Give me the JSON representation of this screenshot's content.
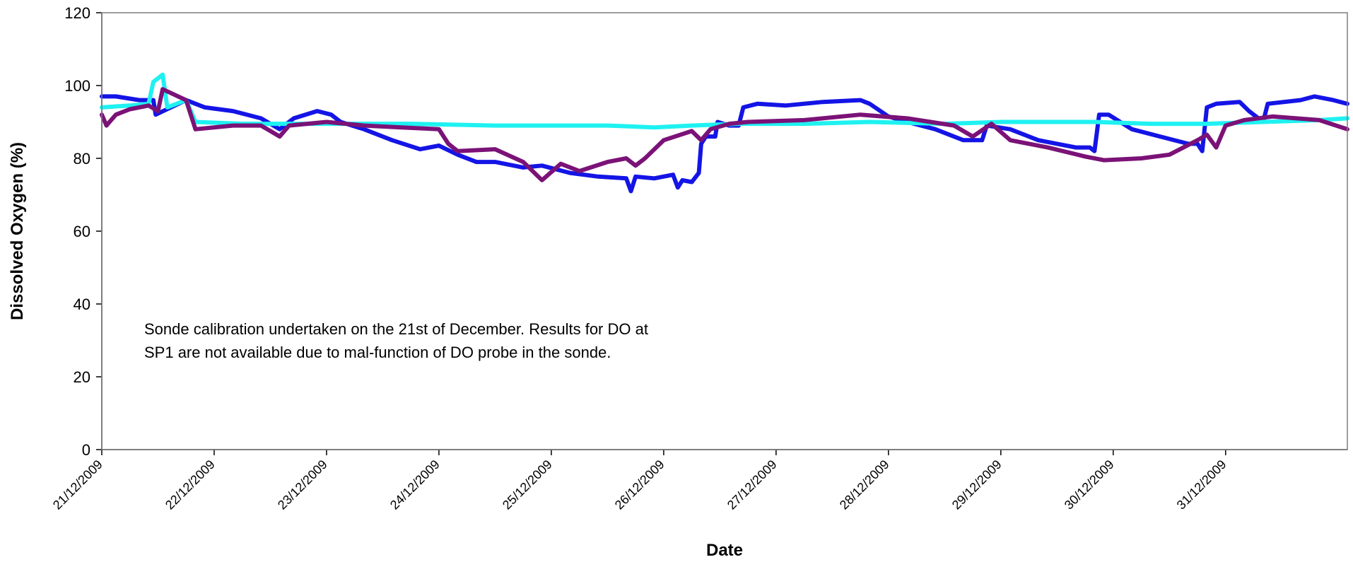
{
  "chart_data": {
    "type": "line",
    "title": "",
    "xlabel": "Date",
    "ylabel": "Dissolved Oxygen (%)",
    "ylim": [
      0,
      120
    ],
    "yticks": [
      0,
      20,
      40,
      60,
      80,
      100,
      120
    ],
    "xlim": [
      "21/12/2009",
      "01/01/2010 02:00"
    ],
    "xticks": [
      "21/12/2009",
      "22/12/2009",
      "23/12/2009",
      "24/12/2009",
      "25/12/2009",
      "26/12/2009",
      "27/12/2009",
      "28/12/2009",
      "29/12/2009",
      "30/12/2009",
      "31/12/2009"
    ],
    "grid": false,
    "legend": "none",
    "annotation": {
      "line1": "Sonde calibration undertaken on the 21st of December. Results for DO at",
      "line2": "SP1 are not available due to mal-function of DO probe in the sonde."
    },
    "series": [
      {
        "color": "#1414e6",
        "points": [
          [
            "21/12/2009 00:00",
            97
          ],
          [
            "21/12/2009 03:00",
            97
          ],
          [
            "21/12/2009 08:00",
            96
          ],
          [
            "21/12/2009 11:00",
            96
          ],
          [
            "21/12/2009 11:30",
            92
          ],
          [
            "21/12/2009 18:00",
            96
          ],
          [
            "21/12/2009 22:00",
            94
          ],
          [
            "22/12/2009 04:00",
            93
          ],
          [
            "22/12/2009 10:00",
            91
          ],
          [
            "22/12/2009 14:00",
            88
          ],
          [
            "22/12/2009 17:00",
            91
          ],
          [
            "22/12/2009 22:00",
            93
          ],
          [
            "23/12/2009 01:00",
            92
          ],
          [
            "23/12/2009 03:00",
            90
          ],
          [
            "23/12/2009 08:00",
            88
          ],
          [
            "23/12/2009 14:00",
            85
          ],
          [
            "23/12/2009 20:00",
            82.5
          ],
          [
            "24/12/2009 00:00",
            83.5
          ],
          [
            "24/12/2009 04:00",
            81
          ],
          [
            "24/12/2009 08:00",
            79
          ],
          [
            "24/12/2009 12:00",
            79
          ],
          [
            "24/12/2009 18:00",
            77.5
          ],
          [
            "24/12/2009 22:00",
            78
          ],
          [
            "25/12/2009 04:00",
            76
          ],
          [
            "25/12/2009 10:00",
            75
          ],
          [
            "25/12/2009 16:00",
            74.5
          ],
          [
            "25/12/2009 17:00",
            71
          ],
          [
            "25/12/2009 18:00",
            75
          ],
          [
            "25/12/2009 22:00",
            74.5
          ],
          [
            "26/12/2009 02:00",
            75.5
          ],
          [
            "26/12/2009 03:00",
            72
          ],
          [
            "26/12/2009 04:00",
            74
          ],
          [
            "26/12/2009 06:00",
            73.5
          ],
          [
            "26/12/2009 07:30",
            76
          ],
          [
            "26/12/2009 08:00",
            84
          ],
          [
            "26/12/2009 09:00",
            86
          ],
          [
            "26/12/2009 11:00",
            86
          ],
          [
            "26/12/2009 11:30",
            90
          ],
          [
            "26/12/2009 14:00",
            89
          ],
          [
            "26/12/2009 16:00",
            89
          ],
          [
            "26/12/2009 17:00",
            94
          ],
          [
            "26/12/2009 20:00",
            95
          ],
          [
            "27/12/2009 02:00",
            94.5
          ],
          [
            "27/12/2009 10:00",
            95.5
          ],
          [
            "27/12/2009 18:00",
            96
          ],
          [
            "27/12/2009 20:00",
            95
          ],
          [
            "28/12/2009 00:00",
            91.5
          ],
          [
            "28/12/2009 04:00",
            90
          ],
          [
            "28/12/2009 10:00",
            88
          ],
          [
            "28/12/2009 16:00",
            85
          ],
          [
            "28/12/2009 20:00",
            85
          ],
          [
            "28/12/2009 21:00",
            89
          ],
          [
            "29/12/2009 02:00",
            88
          ],
          [
            "29/12/2009 08:00",
            85
          ],
          [
            "29/12/2009 16:00",
            83
          ],
          [
            "29/12/2009 19:00",
            83
          ],
          [
            "29/12/2009 20:00",
            82
          ],
          [
            "29/12/2009 21:00",
            92
          ],
          [
            "29/12/2009 23:00",
            92
          ],
          [
            "30/12/2009 04:00",
            88
          ],
          [
            "30/12/2009 10:00",
            86
          ],
          [
            "30/12/2009 16:00",
            84
          ],
          [
            "30/12/2009 18:00",
            84
          ],
          [
            "30/12/2009 19:00",
            82
          ],
          [
            "30/12/2009 20:00",
            94
          ],
          [
            "30/12/2009 22:00",
            95
          ],
          [
            "31/12/2009 03:00",
            95.5
          ],
          [
            "31/12/2009 05:00",
            93
          ],
          [
            "31/12/2009 08:00",
            90
          ],
          [
            "31/12/2009 09:00",
            95
          ],
          [
            "31/12/2009 16:00",
            96
          ],
          [
            "31/12/2009 19:00",
            97
          ],
          [
            "31/12/2009 23:00",
            96
          ],
          [
            "01/01/2010 02:00",
            95
          ]
        ]
      },
      {
        "color": "#1ff1f1",
        "points": [
          [
            "21/12/2009 00:00",
            94
          ],
          [
            "21/12/2009 06:00",
            94.5
          ],
          [
            "21/12/2009 10:00",
            95
          ],
          [
            "21/12/2009 11:00",
            101
          ],
          [
            "21/12/2009 13:00",
            103
          ],
          [
            "21/12/2009 14:00",
            94
          ],
          [
            "21/12/2009 18:00",
            96
          ],
          [
            "21/12/2009 20:00",
            90
          ],
          [
            "22/12/2009 06:00",
            89.5
          ],
          [
            "22/12/2009 18:00",
            89.5
          ],
          [
            "23/12/2009 06:00",
            89.5
          ],
          [
            "23/12/2009 18:00",
            89.5
          ],
          [
            "24/12/2009 12:00",
            89
          ],
          [
            "25/12/2009 12:00",
            89
          ],
          [
            "25/12/2009 22:00",
            88.5
          ],
          [
            "26/12/2009 06:00",
            89
          ],
          [
            "26/12/2009 16:00",
            89.5
          ],
          [
            "27/12/2009 06:00",
            89.5
          ],
          [
            "27/12/2009 20:00",
            90
          ],
          [
            "28/12/2009 12:00",
            89.5
          ],
          [
            "29/12/2009 00:00",
            90
          ],
          [
            "29/12/2009 20:00",
            90
          ],
          [
            "30/12/2009 08:00",
            89.5
          ],
          [
            "30/12/2009 20:00",
            89.5
          ],
          [
            "31/12/2009 08:00",
            90
          ],
          [
            "31/12/2009 20:00",
            90.5
          ],
          [
            "01/01/2010 02:00",
            91
          ]
        ]
      },
      {
        "color": "#7b1277",
        "points": [
          [
            "21/12/2009 00:00",
            92
          ],
          [
            "21/12/2009 01:00",
            89
          ],
          [
            "21/12/2009 03:00",
            92
          ],
          [
            "21/12/2009 06:00",
            93.5
          ],
          [
            "21/12/2009 10:00",
            94.5
          ],
          [
            "21/12/2009 12:00",
            93
          ],
          [
            "21/12/2009 13:00",
            99
          ],
          [
            "21/12/2009 18:00",
            96
          ],
          [
            "21/12/2009 20:00",
            88
          ],
          [
            "22/12/2009 04:00",
            89
          ],
          [
            "22/12/2009 10:00",
            89
          ],
          [
            "22/12/2009 14:00",
            86
          ],
          [
            "22/12/2009 16:00",
            89
          ],
          [
            "23/12/2009 00:00",
            90
          ],
          [
            "23/12/2009 08:00",
            89
          ],
          [
            "23/12/2009 16:00",
            88.5
          ],
          [
            "24/12/2009 00:00",
            88
          ],
          [
            "24/12/2009 02:00",
            84
          ],
          [
            "24/12/2009 04:00",
            82
          ],
          [
            "24/12/2009 12:00",
            82.5
          ],
          [
            "24/12/2009 18:00",
            79
          ],
          [
            "24/12/2009 22:00",
            74
          ],
          [
            "25/12/2009 02:00",
            78.5
          ],
          [
            "25/12/2009 06:00",
            76.5
          ],
          [
            "25/12/2009 12:00",
            79
          ],
          [
            "25/12/2009 16:00",
            80
          ],
          [
            "25/12/2009 18:00",
            78
          ],
          [
            "25/12/2009 20:00",
            80
          ],
          [
            "26/12/2009 00:00",
            85
          ],
          [
            "26/12/2009 06:00",
            87.5
          ],
          [
            "26/12/2009 08:00",
            85
          ],
          [
            "26/12/2009 10:00",
            88
          ],
          [
            "26/12/2009 14:00",
            89.5
          ],
          [
            "26/12/2009 18:00",
            90
          ],
          [
            "27/12/2009 06:00",
            90.5
          ],
          [
            "27/12/2009 18:00",
            92
          ],
          [
            "28/12/2009 04:00",
            91
          ],
          [
            "28/12/2009 14:00",
            89
          ],
          [
            "28/12/2009 18:00",
            86
          ],
          [
            "28/12/2009 22:00",
            89.5
          ],
          [
            "29/12/2009 02:00",
            85
          ],
          [
            "29/12/2009 10:00",
            83
          ],
          [
            "29/12/2009 18:00",
            80.5
          ],
          [
            "29/12/2009 22:00",
            79.5
          ],
          [
            "30/12/2009 06:00",
            80
          ],
          [
            "30/12/2009 12:00",
            81
          ],
          [
            "30/12/2009 18:00",
            85
          ],
          [
            "30/12/2009 20:00",
            86.5
          ],
          [
            "30/12/2009 22:00",
            83
          ],
          [
            "31/12/2009 00:00",
            89
          ],
          [
            "31/12/2009 04:00",
            90.5
          ],
          [
            "31/12/2009 10:00",
            91.5
          ],
          [
            "31/12/2009 20:00",
            90.5
          ],
          [
            "01/01/2010 02:00",
            88
          ]
        ]
      }
    ]
  }
}
